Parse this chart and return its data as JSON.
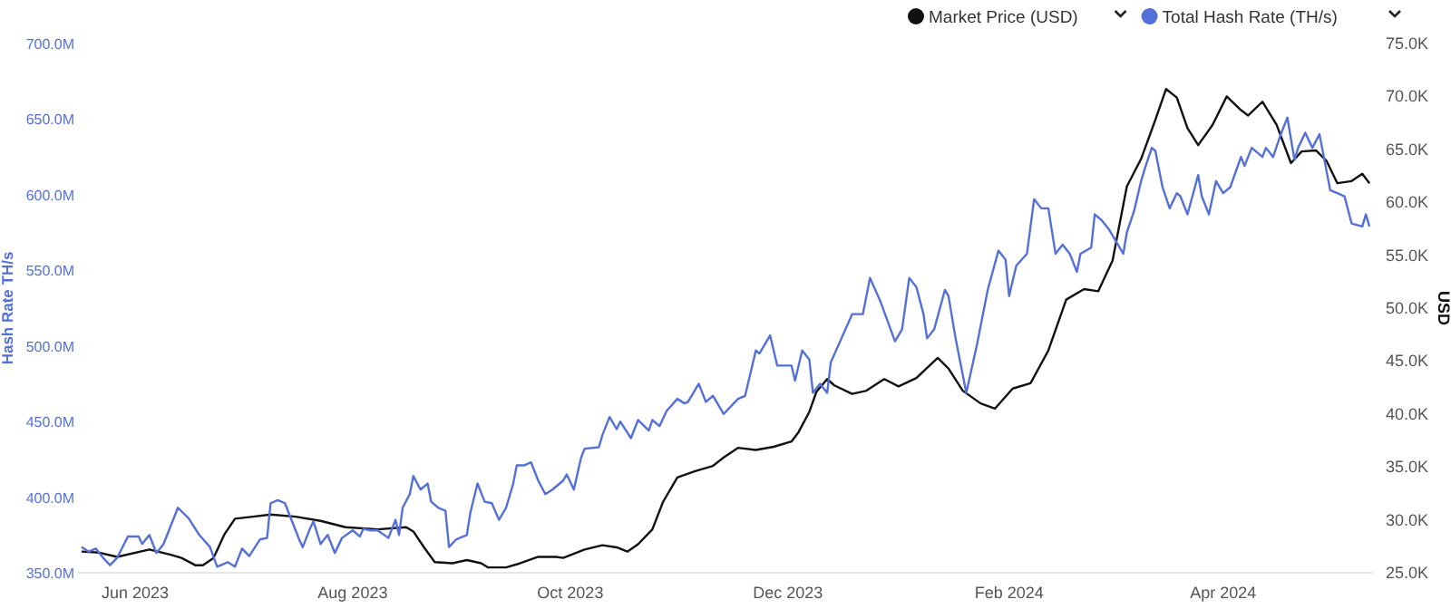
{
  "chart_data": {
    "type": "line",
    "ylabel": "Hash Rate TH/s",
    "y2label": "USD",
    "xlim": [
      "2023-05-16",
      "2024-05-13"
    ],
    "xticks": [
      {
        "value": "2023-06-01",
        "label": "Jun 2023"
      },
      {
        "value": "2023-08-01",
        "label": "Aug 2023"
      },
      {
        "value": "2023-10-01",
        "label": "Oct 2023"
      },
      {
        "value": "2023-12-01",
        "label": "Dec 2023"
      },
      {
        "value": "2024-02-01",
        "label": "Feb 2024"
      },
      {
        "value": "2024-04-01",
        "label": "Apr 2024"
      }
    ],
    "ylim": [
      350,
      700
    ],
    "yticks": [
      {
        "value": 350,
        "label": "350.0M"
      },
      {
        "value": 400,
        "label": "400.0M"
      },
      {
        "value": 450,
        "label": "450.0M"
      },
      {
        "value": 500,
        "label": "500.0M"
      },
      {
        "value": 550,
        "label": "550.0M"
      },
      {
        "value": 600,
        "label": "600.0M"
      },
      {
        "value": 650,
        "label": "650.0M"
      },
      {
        "value": 700,
        "label": "700.0M"
      }
    ],
    "y2lim": [
      25,
      75
    ],
    "y2ticks": [
      {
        "value": 25,
        "label": "25.0K"
      },
      {
        "value": 30,
        "label": "30.0K"
      },
      {
        "value": 35,
        "label": "35.0K"
      },
      {
        "value": 40,
        "label": "40.0K"
      },
      {
        "value": 45,
        "label": "45.0K"
      },
      {
        "value": 50,
        "label": "50.0K"
      },
      {
        "value": 55,
        "label": "55.0K"
      },
      {
        "value": 60,
        "label": "60.0K"
      },
      {
        "value": 65,
        "label": "65.0K"
      },
      {
        "value": 70,
        "label": "70.0K"
      },
      {
        "value": 75,
        "label": "75.0K"
      }
    ],
    "legend": "top right",
    "series": [
      {
        "name": "Market Price (USD)",
        "color": "#111111",
        "axis": "y2",
        "x": [
          "2023-05-17",
          "2023-05-22",
          "2023-05-27",
          "2023-06-05",
          "2023-06-11",
          "2023-06-14",
          "2023-06-18",
          "2023-06-20",
          "2023-06-23",
          "2023-06-26",
          "2023-06-29",
          "2023-07-04",
          "2023-07-09",
          "2023-07-16",
          "2023-07-23",
          "2023-07-30",
          "2023-08-08",
          "2023-08-16",
          "2023-08-18",
          "2023-08-21",
          "2023-08-24",
          "2023-08-29",
          "2023-09-02",
          "2023-09-06",
          "2023-09-08",
          "2023-09-13",
          "2023-09-17",
          "2023-09-22",
          "2023-09-27",
          "2023-09-29",
          "2023-10-05",
          "2023-10-10",
          "2023-10-14",
          "2023-10-17",
          "2023-10-20",
          "2023-10-24",
          "2023-10-27",
          "2023-10-31",
          "2023-11-05",
          "2023-11-10",
          "2023-11-13",
          "2023-11-17",
          "2023-11-22",
          "2023-11-27",
          "2023-12-02",
          "2023-12-04",
          "2023-12-07",
          "2023-12-09",
          "2023-12-12",
          "2023-12-14",
          "2023-12-19",
          "2023-12-23",
          "2023-12-28",
          "2024-01-01",
          "2024-01-06",
          "2024-01-12",
          "2024-01-15",
          "2024-01-19",
          "2024-01-24",
          "2024-01-28",
          "2024-02-02",
          "2024-02-07",
          "2024-02-12",
          "2024-02-17",
          "2024-02-22",
          "2024-02-26",
          "2024-03-01",
          "2024-03-05",
          "2024-03-09",
          "2024-03-13",
          "2024-03-16",
          "2024-03-19",
          "2024-03-22",
          "2024-03-25",
          "2024-03-29",
          "2024-04-02",
          "2024-04-06",
          "2024-04-08",
          "2024-04-12",
          "2024-04-16",
          "2024-04-20",
          "2024-04-23",
          "2024-04-27",
          "2024-04-30",
          "2024-05-03",
          "2024-05-07",
          "2024-05-10",
          "2024-05-12"
        ],
        "values": [
          27.0,
          26.9,
          26.5,
          27.2,
          26.7,
          26.4,
          25.7,
          25.7,
          26.4,
          28.6,
          30.1,
          30.3,
          30.5,
          30.3,
          29.9,
          29.3,
          29.1,
          29.3,
          28.9,
          27.4,
          26.0,
          25.9,
          26.2,
          25.9,
          25.5,
          25.5,
          25.9,
          26.5,
          26.5,
          26.4,
          27.2,
          27.6,
          27.4,
          27.0,
          27.7,
          29.1,
          31.7,
          34.0,
          34.6,
          35.1,
          35.9,
          36.8,
          36.6,
          36.9,
          37.4,
          38.3,
          40.2,
          42.1,
          43.3,
          42.7,
          41.9,
          42.2,
          43.3,
          42.6,
          43.4,
          45.3,
          44.3,
          42.2,
          41.0,
          40.5,
          42.4,
          42.9,
          46.0,
          50.8,
          51.8,
          51.6,
          54.5,
          61.5,
          64.1,
          67.8,
          70.7,
          69.9,
          67.0,
          65.4,
          67.3,
          70.0,
          68.7,
          68.2,
          69.5,
          67.3,
          63.7,
          64.8,
          64.9,
          63.9,
          61.8,
          62.0,
          62.7,
          61.8
        ]
      },
      {
        "name": "Total Hash Rate (TH/s)",
        "color": "#5470d8",
        "axis": "y",
        "x": [
          "2023-05-17",
          "2023-05-19",
          "2023-05-21",
          "2023-05-23",
          "2023-05-25",
          "2023-05-27",
          "2023-05-30",
          "2023-06-02",
          "2023-06-03",
          "2023-06-05",
          "2023-06-07",
          "2023-06-09",
          "2023-06-11",
          "2023-06-13",
          "2023-06-16",
          "2023-06-19",
          "2023-06-22",
          "2023-06-24",
          "2023-06-27",
          "2023-06-29",
          "2023-07-01",
          "2023-07-03",
          "2023-07-06",
          "2023-07-08",
          "2023-07-09",
          "2023-07-11",
          "2023-07-13",
          "2023-07-15",
          "2023-07-17",
          "2023-07-18",
          "2023-07-20",
          "2023-07-21",
          "2023-07-23",
          "2023-07-25",
          "2023-07-27",
          "2023-07-29",
          "2023-08-01",
          "2023-08-03",
          "2023-08-04",
          "2023-08-06",
          "2023-08-08",
          "2023-08-11",
          "2023-08-13",
          "2023-08-14",
          "2023-08-15",
          "2023-08-17",
          "2023-08-18",
          "2023-08-20",
          "2023-08-22",
          "2023-08-23",
          "2023-08-25",
          "2023-08-27",
          "2023-08-28",
          "2023-08-30",
          "2023-09-02",
          "2023-09-03",
          "2023-09-05",
          "2023-09-07",
          "2023-09-09",
          "2023-09-11",
          "2023-09-13",
          "2023-09-15",
          "2023-09-16",
          "2023-09-18",
          "2023-09-20",
          "2023-09-22",
          "2023-09-24",
          "2023-09-26",
          "2023-09-29",
          "2023-09-30",
          "2023-10-02",
          "2023-10-04",
          "2023-10-05",
          "2023-10-09",
          "2023-10-10",
          "2023-10-12",
          "2023-10-14",
          "2023-10-15",
          "2023-10-18",
          "2023-10-20",
          "2023-10-23",
          "2023-10-24",
          "2023-10-26",
          "2023-10-28",
          "2023-10-31",
          "2023-11-02",
          "2023-11-03",
          "2023-11-06",
          "2023-11-08",
          "2023-11-10",
          "2023-11-13",
          "2023-11-17",
          "2023-11-19",
          "2023-11-22",
          "2023-11-23",
          "2023-11-26",
          "2023-11-28",
          "2023-12-02",
          "2023-12-03",
          "2023-12-05",
          "2023-12-07",
          "2023-12-08",
          "2023-12-10",
          "2023-12-12",
          "2023-12-13",
          "2023-12-16",
          "2023-12-19",
          "2023-12-22",
          "2023-12-24",
          "2023-12-27",
          "2023-12-31",
          "2024-01-02",
          "2024-01-04",
          "2024-01-06",
          "2024-01-08",
          "2024-01-09",
          "2024-01-11",
          "2024-01-14",
          "2024-01-15",
          "2024-01-17",
          "2024-01-20",
          "2024-01-23",
          "2024-01-26",
          "2024-01-29",
          "2024-01-31",
          "2024-02-01",
          "2024-02-03",
          "2024-02-06",
          "2024-02-08",
          "2024-02-10",
          "2024-02-12",
          "2024-02-14",
          "2024-02-16",
          "2024-02-18",
          "2024-02-20",
          "2024-02-21",
          "2024-02-24",
          "2024-02-25",
          "2024-02-27",
          "2024-02-29",
          "2024-03-02",
          "2024-03-04",
          "2024-03-05",
          "2024-03-07",
          "2024-03-09",
          "2024-03-10",
          "2024-03-12",
          "2024-03-13",
          "2024-03-15",
          "2024-03-17",
          "2024-03-19",
          "2024-03-20",
          "2024-03-22",
          "2024-03-25",
          "2024-03-26",
          "2024-03-28",
          "2024-03-30",
          "2024-04-01",
          "2024-04-03",
          "2024-04-06",
          "2024-04-07",
          "2024-04-09",
          "2024-04-12",
          "2024-04-13",
          "2024-04-15",
          "2024-04-17",
          "2024-04-19",
          "2024-04-21",
          "2024-04-22",
          "2024-04-24",
          "2024-04-26",
          "2024-04-28",
          "2024-05-01",
          "2024-05-03",
          "2024-05-05",
          "2024-05-07",
          "2024-05-10",
          "2024-05-11",
          "2024-05-12"
        ],
        "values": [
          367,
          364,
          366,
          360,
          355,
          360,
          374,
          374,
          369,
          375,
          363,
          369,
          381,
          393,
          386,
          375,
          367,
          354,
          357,
          354,
          366,
          361,
          372,
          373,
          396,
          398,
          396,
          384,
          372,
          367,
          379,
          384,
          369,
          375,
          363,
          373,
          378,
          374,
          379,
          378,
          378,
          373,
          385,
          375,
          393,
          402,
          414,
          405,
          409,
          397,
          393,
          391,
          367,
          372,
          375,
          390,
          409,
          397,
          396,
          385,
          393,
          409,
          421,
          421,
          423,
          411,
          402,
          405,
          411,
          415,
          405,
          426,
          432,
          433,
          441,
          453,
          445,
          450,
          439,
          451,
          444,
          451,
          447,
          457,
          465,
          462,
          463,
          475,
          463,
          467,
          455,
          465,
          467,
          497,
          495,
          507,
          487,
          487,
          477,
          497,
          491,
          469,
          475,
          469,
          489,
          505,
          521,
          521,
          545,
          529,
          503,
          511,
          545,
          539,
          521,
          505,
          511,
          537,
          533,
          505,
          469,
          501,
          537,
          563,
          557,
          533,
          553,
          561,
          597,
          591,
          591,
          561,
          567,
          561,
          549,
          561,
          565,
          587,
          583,
          577,
          569,
          561,
          575,
          589,
          609,
          617,
          631,
          629,
          605,
          591,
          601,
          599,
          587,
          613,
          599,
          587,
          609,
          601,
          605,
          625,
          619,
          631,
          625,
          631,
          625,
          639,
          651,
          623,
          631,
          641,
          631,
          640,
          603,
          601,
          599,
          581,
          579,
          587,
          579
        ]
      }
    ]
  }
}
